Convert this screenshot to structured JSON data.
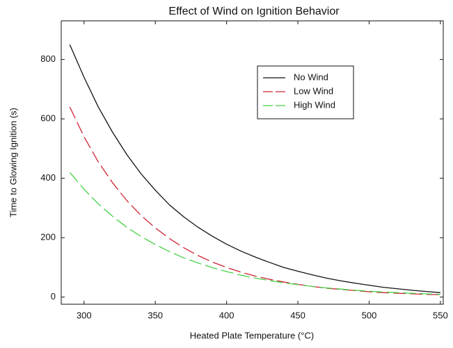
{
  "chart_data": {
    "type": "line",
    "title": "Effect of Wind on Ignition Behavior",
    "x_label": "Heated Plate Temperature (°C)",
    "y_label": "Time to Glowing Ignition (s)",
    "x": [
      290,
      300,
      310,
      320,
      330,
      340,
      350,
      360,
      370,
      380,
      390,
      400,
      410,
      420,
      430,
      440,
      450,
      460,
      470,
      480,
      490,
      500,
      510,
      520,
      530,
      540,
      550
    ],
    "series": [
      {
        "name": "No Wind",
        "color": "#111111",
        "dash": false,
        "values": [
          850,
          740,
          640,
          555,
          480,
          415,
          360,
          310,
          270,
          235,
          205,
          178,
          155,
          135,
          117,
          100,
          87,
          75,
          64,
          55,
          47,
          40,
          33,
          28,
          23,
          19,
          15
        ]
      },
      {
        "name": "Low Wind",
        "color": "#cc2233",
        "dash": true,
        "values": [
          640,
          540,
          455,
          385,
          325,
          275,
          233,
          197,
          166,
          140,
          118,
          100,
          84,
          71,
          60,
          51,
          43,
          36,
          30,
          26,
          22,
          18,
          15,
          13,
          11,
          9,
          8
        ]
      },
      {
        "name": "High Wind",
        "color": "#44d044",
        "dash": true,
        "values": [
          420,
          363,
          314,
          272,
          235,
          204,
          177,
          153,
          132,
          115,
          99,
          86,
          74,
          64,
          56,
          48,
          42,
          36,
          31,
          27,
          23,
          20,
          17,
          15,
          13,
          11,
          9
        ]
      }
    ],
    "xlim": [
      284,
      552
    ],
    "ylim": [
      -24,
      930
    ],
    "xticks": [
      300,
      350,
      400,
      450,
      500,
      550
    ],
    "yticks": [
      0,
      200,
      400,
      600,
      800
    ],
    "legend": "upper right"
  }
}
